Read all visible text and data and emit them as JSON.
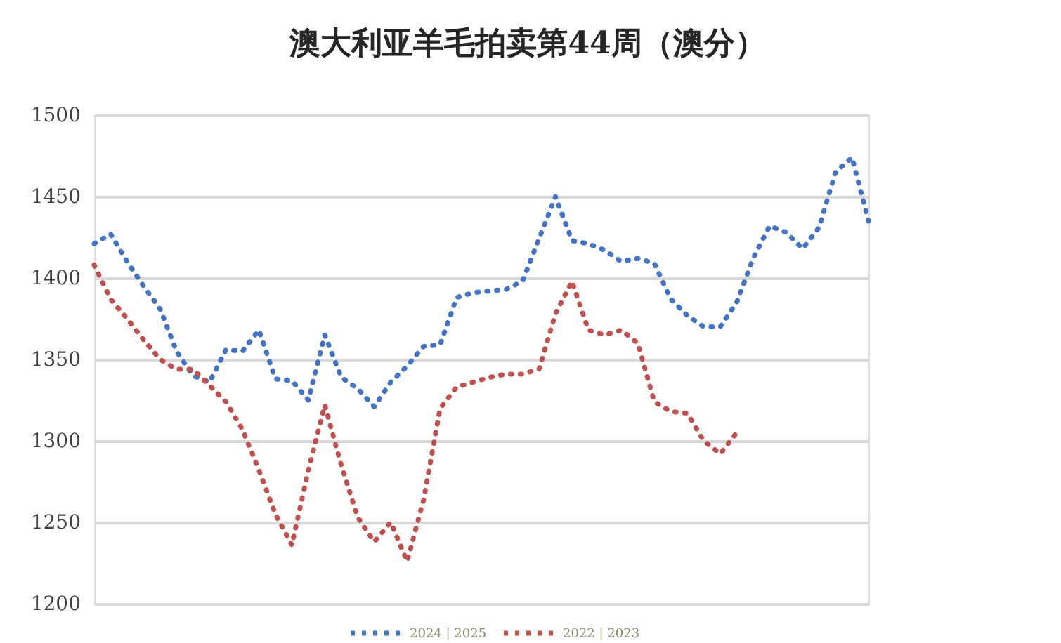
{
  "chart_data": {
    "type": "line",
    "title": "澳大利亚羊毛拍卖第44周（澳分）",
    "categories": [
      null,
      null,
      null,
      null,
      null,
      null,
      null,
      null,
      null,
      null,
      null,
      null,
      null,
      null,
      null,
      null,
      null,
      null,
      null,
      null,
      null,
      null,
      null,
      null,
      null,
      null,
      null,
      null,
      null,
      null,
      null,
      null,
      null,
      null,
      null,
      null,
      null,
      null,
      null,
      null,
      null,
      null,
      null,
      null,
      null,
      null,
      null,
      null
    ],
    "series": [
      {
        "name": "2024 | 2025",
        "color": "#4472c4",
        "values": [
          1421,
          1427,
          1410,
          1395,
          1381,
          1355,
          1340,
          1336,
          1356,
          1355,
          1368,
          1338,
          1337,
          1325,
          1365,
          1339,
          1332,
          1321,
          1336,
          1346,
          1358,
          1359,
          1388,
          1391,
          1392,
          1393,
          1398,
          1424,
          1450,
          1423,
          1421,
          1417,
          1410,
          1412,
          1409,
          1387,
          1377,
          1370,
          1370,
          1385,
          1412,
          1432,
          1428,
          1418,
          1431,
          1465,
          1474,
          1435
        ]
      },
      {
        "name": "2022 | 2023",
        "color": "#c0504d",
        "values": [
          1408,
          1387,
          1375,
          1362,
          1350,
          1344,
          1344,
          1334,
          1324,
          1307,
          1282,
          1255,
          1236,
          1282,
          1322,
          1285,
          1253,
          1238,
          1250,
          1226,
          1264,
          1320,
          1333,
          1336,
          1339,
          1341,
          1341,
          1344,
          1378,
          1398,
          1368,
          1365,
          1368,
          1360,
          1324,
          1318,
          1317,
          1300,
          1292,
          1305,
          null,
          null,
          null,
          null,
          null,
          null,
          null,
          null
        ]
      }
    ],
    "ylim": [
      1200,
      1500
    ],
    "yticks": [
      1200,
      1250,
      1300,
      1350,
      1400,
      1450,
      1500
    ],
    "grid": "y",
    "legend": "bottom",
    "line_style": "dotted",
    "tick_labels": "y"
  }
}
